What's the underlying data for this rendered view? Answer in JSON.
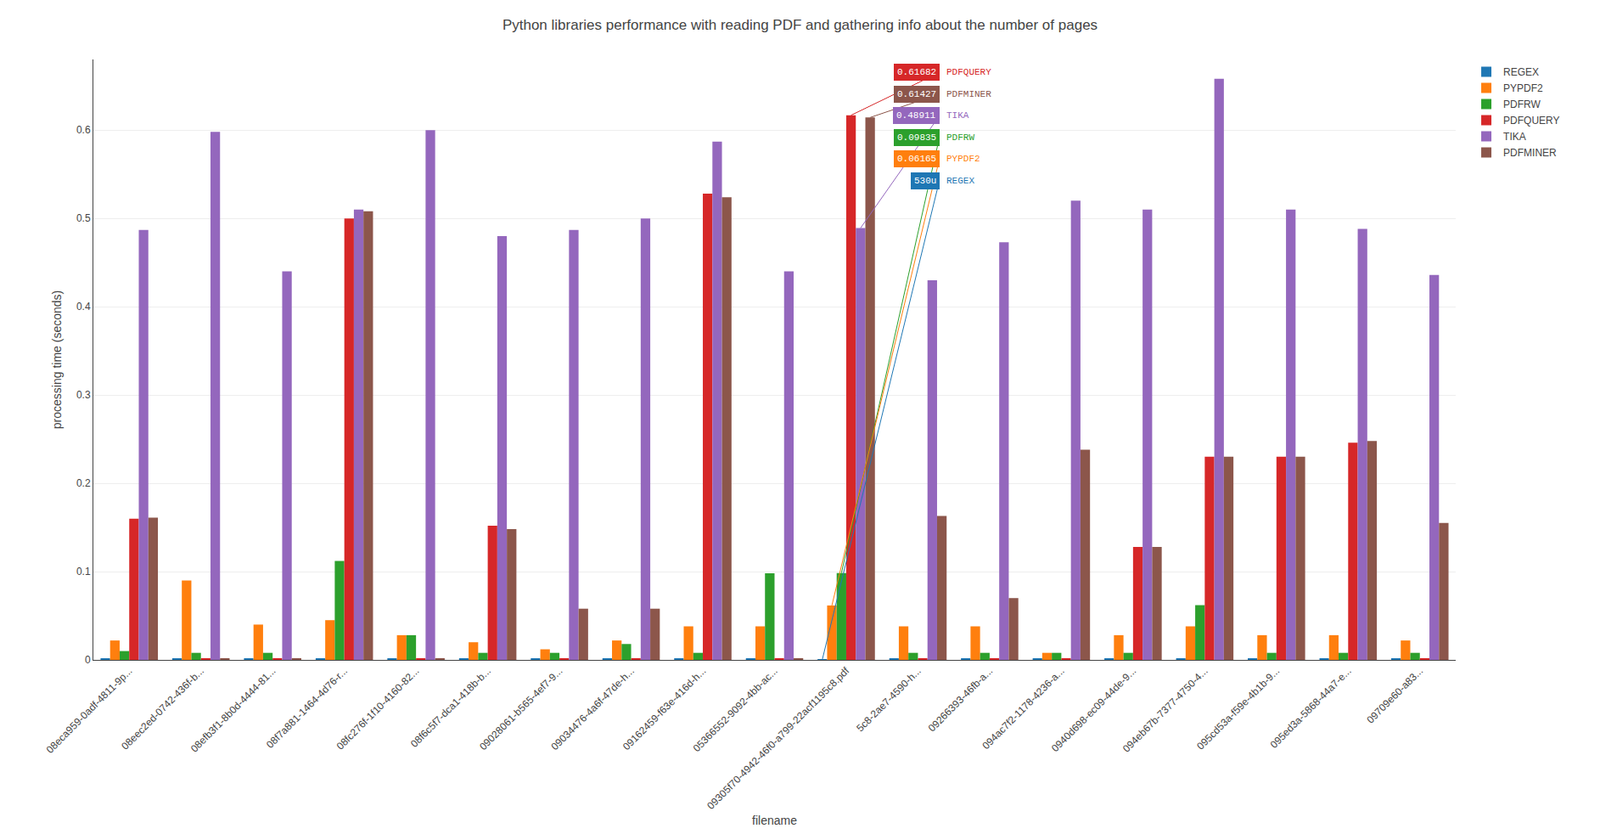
{
  "chart_data": {
    "type": "bar",
    "title": "Python libraries performance with reading PDF and gathering info about the number of pages",
    "xlabel": "filename",
    "ylabel": "processing time (seconds)",
    "categories": [
      "08eca959-0adf-4811-9p...",
      "08eec2ed-0742-436f-b...",
      "08efb3f1-8b0d-4444-81...",
      "08f7a881-1464-4d76-r...",
      "08fc276f-1f10-4160-82...",
      "08f6c5f7-dca1-418b-b...",
      "09028061-b565-4ef7-9...",
      "09034476-4a6f-47de-h...",
      "09162459-f63e-416d-h...",
      "05366552-9092-4bb-ac...",
      "09305f70-4942-46f0-a799-22acf1195c8.pdf",
      "5c8-2ae7-4590-h...",
      "09266393-46fb-a...",
      "094ac7f2-1178-4236-a...",
      "0940d698-ec09-44de-9...",
      "094eb67b-7377-4750-4...",
      "095cd53a-f59e-4b1b-9...",
      "095ed3a-5868-44a7-e...",
      "09709e60-a83..."
    ],
    "series": [
      {
        "name": "REGEX",
        "color": "#1f77b4",
        "values": [
          0.001,
          0.001,
          0.001,
          0.001,
          0.001,
          0.001,
          0.001,
          0.001,
          0.001,
          0.001,
          0.00053,
          0.001,
          0.001,
          0.001,
          0.001,
          0.001,
          0.001,
          0.001,
          0.001
        ]
      },
      {
        "name": "PYPDF2",
        "color": "#ff7f0e",
        "values": [
          0.022,
          0.09,
          0.04,
          0.045,
          0.028,
          0.02,
          0.012,
          0.022,
          0.038,
          0.038,
          0.06165,
          0.038,
          0.038,
          0.008,
          0.028,
          0.038,
          0.028,
          0.028,
          0.022
        ]
      },
      {
        "name": "PDFRW",
        "color": "#2ca02c",
        "values": [
          0.01,
          0.008,
          0.008,
          0.112,
          0.028,
          0.008,
          0.008,
          0.018,
          0.008,
          0.098,
          0.09835,
          0.008,
          0.008,
          0.008,
          0.008,
          0.062,
          0.008,
          0.008,
          0.008
        ]
      },
      {
        "name": "PDFQUERY",
        "color": "#d62728",
        "values": [
          0.16,
          0.002,
          0.002,
          0.5,
          0.002,
          0.152,
          0.002,
          0.002,
          0.528,
          0.002,
          0.61682,
          0.002,
          0.002,
          0.002,
          0.128,
          0.23,
          0.23,
          0.246,
          0.002
        ]
      },
      {
        "name": "TIKA",
        "color": "#9467bd",
        "values": [
          0.487,
          0.598,
          0.44,
          0.51,
          0.6,
          0.48,
          0.487,
          0.5,
          0.587,
          0.44,
          0.48911,
          0.43,
          0.473,
          0.52,
          0.51,
          0.658,
          0.51,
          0.488,
          0.436
        ]
      },
      {
        "name": "PDFMINER",
        "color": "#8c564b",
        "values": [
          0.161,
          0.002,
          0.002,
          0.508,
          0.002,
          0.148,
          0.058,
          0.058,
          0.524,
          0.002,
          0.61427,
          0.163,
          0.07,
          0.238,
          0.128,
          0.23,
          0.23,
          0.248,
          0.155
        ]
      }
    ],
    "annotations": [
      {
        "series": "PDFQUERY",
        "category": "09305f70-4942-46f0-a799-22acf1195c8.pdf",
        "value": 0.61682,
        "label": "0.61682",
        "text": "PDFQUERY",
        "color": "#d62728"
      },
      {
        "series": "PDFMINER",
        "category": "09305f70-4942-46f0-a799-22acf1195c8.pdf",
        "value": 0.61427,
        "label": "0.61427",
        "text": "PDFMINER",
        "color": "#8c564b"
      },
      {
        "series": "TIKA",
        "category": "09305f70-4942-46f0-a799-22acf1195c8.pdf",
        "value": 0.48911,
        "label": "0.48911",
        "text": "TIKA",
        "color": "#9467bd"
      },
      {
        "series": "PDFRW",
        "category": "09305f70-4942-46f0-a799-22acf1195c8.pdf",
        "value": 0.09835,
        "label": "0.09835",
        "text": "PDFRW",
        "color": "#2ca02c"
      },
      {
        "series": "PYPDF2",
        "category": "09305f70-4942-46f0-a799-22acf1195c8.pdf",
        "value": 0.06165,
        "label": "0.06165",
        "text": "PYPDF2",
        "color": "#ff7f0e"
      },
      {
        "series": "REGEX",
        "category": "09305f70-4942-46f0-a799-22acf1195c8.pdf",
        "value": 0.00053,
        "label": "530u",
        "text": "REGEX",
        "color": "#1f77b4"
      }
    ],
    "ylim": [
      0.0,
      0.68
    ],
    "yticks": [
      0.0,
      0.1,
      0.2,
      0.3,
      0.4,
      0.5,
      0.6
    ],
    "grid": true,
    "legend": "right"
  }
}
